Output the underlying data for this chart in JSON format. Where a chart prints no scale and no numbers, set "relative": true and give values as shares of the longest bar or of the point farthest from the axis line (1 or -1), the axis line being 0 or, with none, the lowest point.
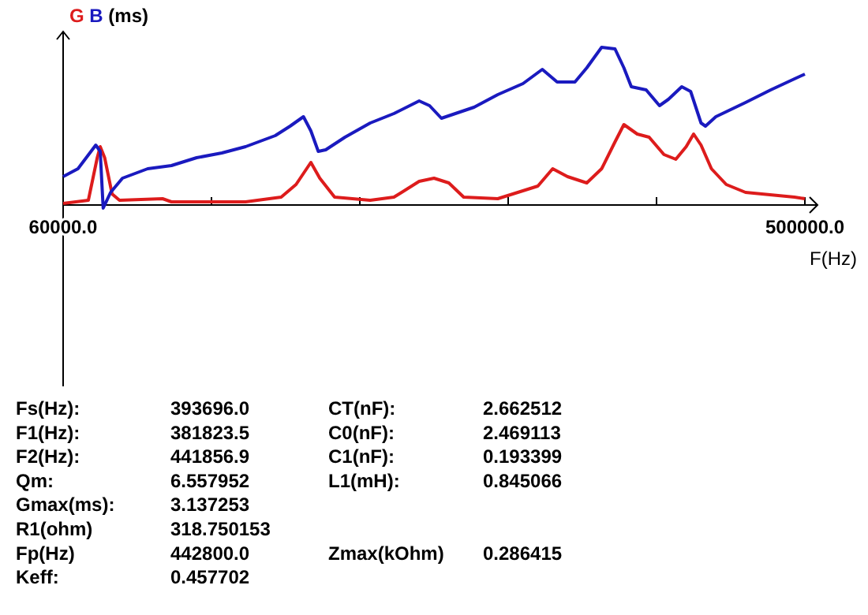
{
  "chart_data": {
    "type": "line",
    "relative": true,
    "ylabel": "(ms)",
    "xlabel": "F(Hz)",
    "legend": "top left",
    "grid": false,
    "marker": "none",
    "line_style": "solid",
    "xlim": [
      60000,
      500000
    ],
    "xticks": [
      {
        "value": 60000,
        "label": "60000.0"
      },
      {
        "value": 148000,
        "label": null
      },
      {
        "value": 236000,
        "label": null
      },
      {
        "value": 324000,
        "label": null
      },
      {
        "value": 412000,
        "label": null
      },
      {
        "value": 500000,
        "label": "500000.0"
      }
    ],
    "series": [
      {
        "name": "G",
        "color": "#dd1c1c",
        "x": [
          60000,
          74960,
          80240,
          82000,
          84640,
          89040,
          93440,
          118960,
          124240,
          168240,
          189360,
          198160,
          206960,
          212240,
          221040,
          242160,
          256240,
          271200,
          280000,
          288800,
          297600,
          317840,
          341600,
          350400,
          359200,
          370640,
          379440,
          387360,
          392640,
          400560,
          407600,
          416400,
          423440,
          429600,
          434000,
          438400,
          444560,
          453360,
          464800,
          493840,
          500000
        ],
        "values": [
          0.01,
          0.03,
          0.3,
          0.37,
          0.3,
          0.07,
          0.03,
          0.04,
          0.02,
          0.02,
          0.05,
          0.13,
          0.27,
          0.17,
          0.05,
          0.03,
          0.05,
          0.15,
          0.17,
          0.14,
          0.05,
          0.04,
          0.12,
          0.23,
          0.18,
          0.14,
          0.23,
          0.4,
          0.51,
          0.45,
          0.43,
          0.32,
          0.29,
          0.37,
          0.45,
          0.38,
          0.23,
          0.13,
          0.08,
          0.05,
          0.04
        ]
      },
      {
        "name": "B",
        "color": "#1a1abf",
        "x": [
          60000,
          68800,
          79360,
          82000,
          83760,
          88160,
          95200,
          110160,
          124240,
          139200,
          154160,
          168240,
          185840,
          194640,
          202560,
          206960,
          211360,
          215760,
          227200,
          242160,
          256240,
          271200,
          277360,
          284400,
          303760,
          317840,
          332800,
          344240,
          353040,
          363600,
          370640,
          379440,
          387360,
          392640,
          397040,
          405840,
          413760,
          419040,
          426960,
          432240,
          438400,
          441040,
          447200,
          464800,
          479760,
          493840,
          500000
        ],
        "values": [
          0.18,
          0.23,
          0.38,
          0.34,
          -0.02,
          0.08,
          0.17,
          0.23,
          0.25,
          0.3,
          0.33,
          0.37,
          0.44,
          0.5,
          0.56,
          0.47,
          0.34,
          0.35,
          0.43,
          0.52,
          0.58,
          0.66,
          0.63,
          0.55,
          0.62,
          0.7,
          0.77,
          0.86,
          0.78,
          0.78,
          0.87,
          1.0,
          0.99,
          0.87,
          0.75,
          0.73,
          0.63,
          0.67,
          0.75,
          0.72,
          0.52,
          0.5,
          0.56,
          0.65,
          0.73,
          0.8,
          0.83
        ]
      }
    ],
    "annotations": [
      "Fs(Hz):\t393696.0",
      "F1(Hz):\t381823.5",
      "F2(Hz):\t441856.9",
      "Qm:\t6.557952",
      "Gmax(ms):\t3.137253",
      "R1(ohm)\t318.750153",
      "Fp(Hz)\t442800.0",
      "Keff:\t0.457702",
      "CT(nF):\t2.662512",
      "C0(nF):\t2.469113",
      "C1(nF):\t0.193399",
      "L1(mH):\t0.845066",
      "Zmax(kOhm)\t0.286415"
    ]
  }
}
